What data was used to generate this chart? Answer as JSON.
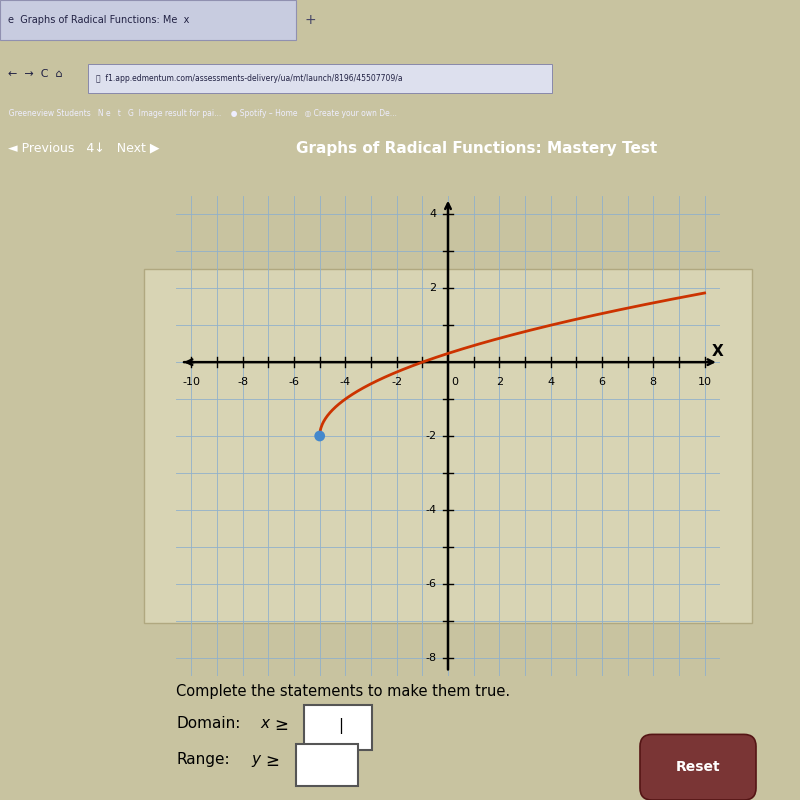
{
  "title": "Graphs of Radical Functions: Mastery Test",
  "background_color": "#c8c3a0",
  "graph_bg": "#ddd9b8",
  "grid_color": "#8fb0cc",
  "curve_color": "#cc3300",
  "curve_lw": 2.0,
  "start_x": -5,
  "start_y": -2,
  "dot_color": "#4488cc",
  "dot_size": 60,
  "x_min": -10,
  "x_max": 10,
  "y_min": -8,
  "y_max": 4,
  "x_ticks": [
    -10,
    -8,
    -6,
    -4,
    -2,
    2,
    4,
    6,
    8,
    10
  ],
  "y_ticks": [
    -8,
    -6,
    -4,
    -2,
    2,
    4
  ],
  "nav_color": "#1a2466",
  "tab_bar_color": "#7a8ab0",
  "address_bar_color": "#9aa0bb",
  "bookmarks_color": "#8890aa",
  "browser_bg": "#c0c4d4",
  "complete_text": "Complete the statements to make them true.",
  "domain_label": "Domain:",
  "range_label": "Range:",
  "reset_color": "#7a3535"
}
